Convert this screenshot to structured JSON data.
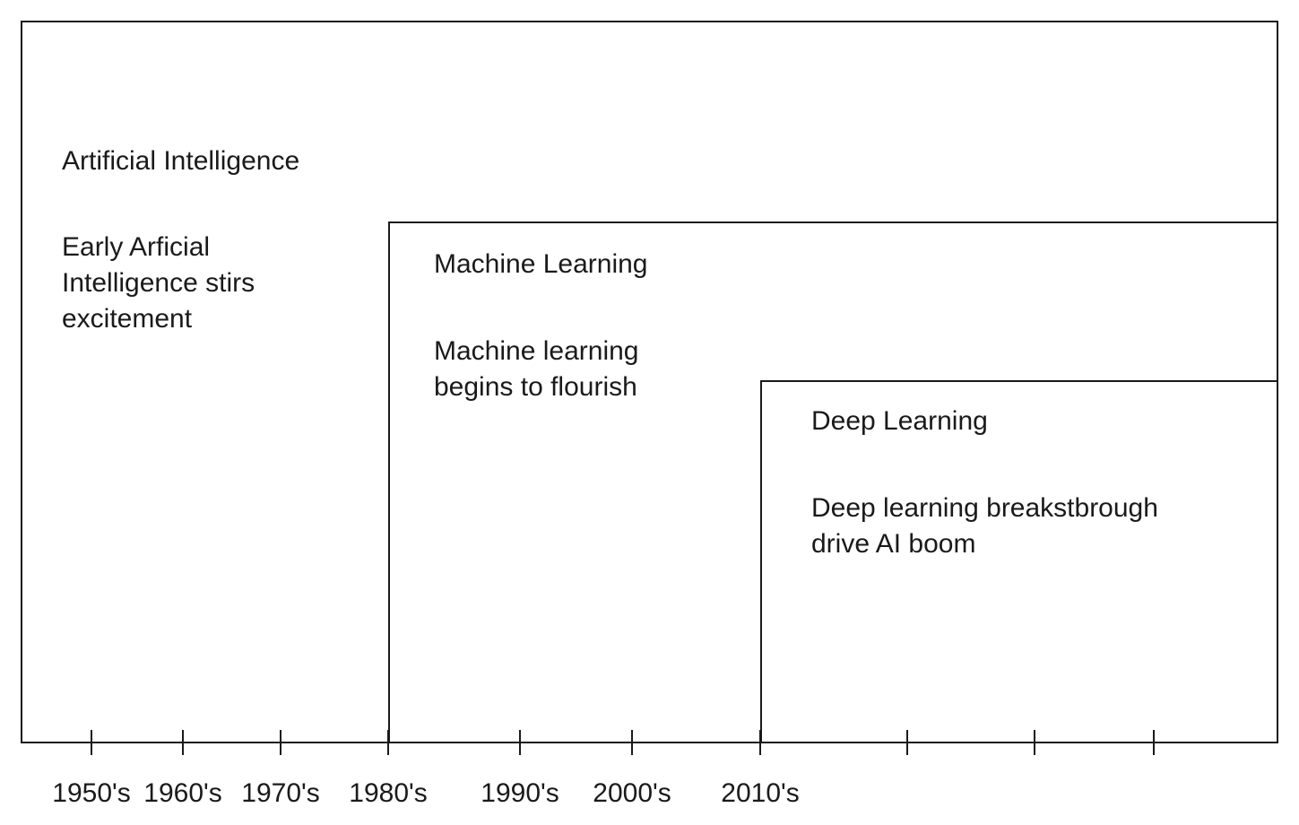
{
  "diagram": {
    "ai": {
      "title": "Artificial Intelligence",
      "description": "Early Arficial\nIntelligence stirs\nexcitement"
    },
    "ml": {
      "title": "Machine Learning",
      "description": "Machine learning\nbegins to flourish"
    },
    "dl": {
      "title": "Deep Learning",
      "description": "Deep learning breakstbrough\ndrive AI boom"
    },
    "timeline": {
      "labels": [
        "1950's",
        "1960's",
        "1970's",
        "1980's",
        "1990's",
        "2000's",
        "2010's"
      ]
    }
  }
}
